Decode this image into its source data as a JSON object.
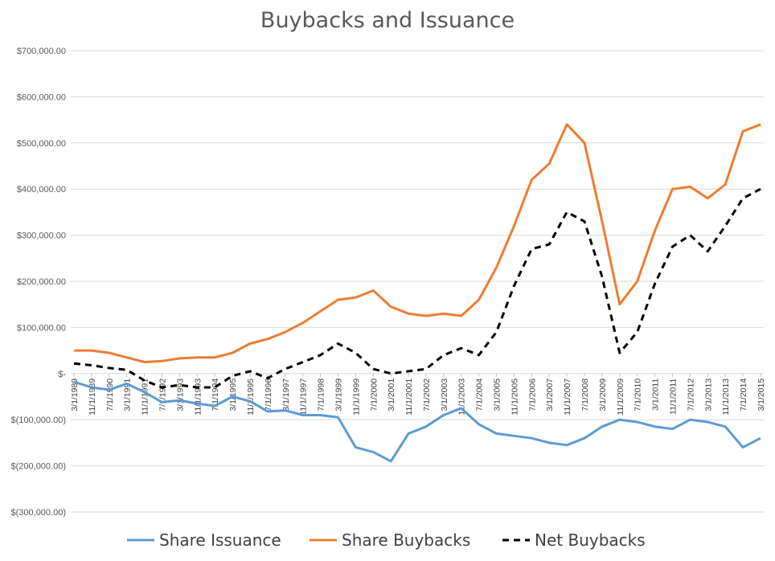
{
  "chart_data": {
    "type": "line",
    "title": "Buybacks and Issuance",
    "xlabel": "",
    "ylabel": "",
    "ylim": [
      -300000,
      700000
    ],
    "grid": true,
    "legend_position": "bottom",
    "y_tick_labels": [
      "$700,000.00",
      "$600,000.00",
      "$500,000.00",
      "$400,000.00",
      "$300,000.00",
      "$200,000.00",
      "$100,000.00",
      "$-",
      "$(100,000.00)",
      "$(200,000.00)",
      "$(300,000.00)"
    ],
    "y_tick_values": [
      700000,
      600000,
      500000,
      400000,
      300000,
      200000,
      100000,
      0,
      -100000,
      -200000,
      -300000
    ],
    "x_tick_labels": [
      "3/1/1989",
      "11/1/1989",
      "7/1/1990",
      "3/1/1991",
      "11/1/1991",
      "7/1/1992",
      "3/1/1993",
      "11/1/1993",
      "7/1/1994",
      "3/1/1995",
      "11/1/1995",
      "7/1/1996",
      "3/1/1997",
      "11/1/1997",
      "7/1/1998",
      "3/1/1999",
      "11/1/1999",
      "7/1/2000",
      "3/1/2001",
      "11/1/2001",
      "7/1/2002",
      "3/1/2003",
      "11/1/2003",
      "7/1/2004",
      "3/1/2005",
      "11/1/2005",
      "7/1/2006",
      "3/1/2007",
      "11/1/2007",
      "7/1/2008",
      "3/1/2009",
      "11/1/2009",
      "7/1/2010",
      "3/1/2011",
      "11/1/2011",
      "7/1/2012",
      "3/1/2013",
      "11/1/2013",
      "7/1/2014",
      "3/1/2015"
    ],
    "x": [
      "3/1/1989",
      "11/1/1989",
      "7/1/1990",
      "3/1/1991",
      "11/1/1991",
      "7/1/1992",
      "3/1/1993",
      "11/1/1993",
      "7/1/1994",
      "3/1/1995",
      "11/1/1995",
      "7/1/1996",
      "3/1/1997",
      "11/1/1997",
      "7/1/1998",
      "3/1/1999",
      "11/1/1999",
      "7/1/2000",
      "3/1/2001",
      "11/1/2001",
      "7/1/2002",
      "3/1/2003",
      "11/1/2003",
      "7/1/2004",
      "3/1/2005",
      "11/1/2005",
      "7/1/2006",
      "3/1/2007",
      "11/1/2007",
      "7/1/2008",
      "3/1/2009",
      "11/1/2009",
      "7/1/2010",
      "3/1/2011",
      "11/1/2011",
      "7/1/2012",
      "3/1/2013",
      "11/1/2013",
      "7/1/2014",
      "3/1/2015"
    ],
    "series": [
      {
        "name": "Share Issuance",
        "color": "#5B9BD5",
        "dash": "solid",
        "values": [
          -18000,
          -30000,
          -35000,
          -22000,
          -40000,
          -62000,
          -58000,
          -65000,
          -70000,
          -50000,
          -60000,
          -82000,
          -80000,
          -90000,
          -90000,
          -95000,
          -160000,
          -170000,
          -190000,
          -130000,
          -115000,
          -90000,
          -75000,
          -110000,
          -130000,
          -135000,
          -140000,
          -150000,
          -155000,
          -140000,
          -115000,
          -100000,
          -105000,
          -115000,
          -120000,
          -100000,
          -105000,
          -115000,
          -160000,
          -140000
        ]
      },
      {
        "name": "Share Buybacks",
        "color": "#ED7D31",
        "dash": "solid",
        "values": [
          50000,
          50000,
          45000,
          35000,
          25000,
          27000,
          33000,
          35000,
          35000,
          45000,
          65000,
          75000,
          90000,
          110000,
          135000,
          160000,
          165000,
          180000,
          145000,
          130000,
          125000,
          130000,
          125000,
          160000,
          230000,
          320000,
          420000,
          455000,
          540000,
          500000,
          330000,
          150000,
          200000,
          310000,
          400000,
          405000,
          380000,
          410000,
          525000,
          540000
        ]
      },
      {
        "name": "Net Buybacks",
        "color": "#000000",
        "dash": "dashed",
        "values": [
          22000,
          18000,
          12000,
          8000,
          -15000,
          -30000,
          -25000,
          -30000,
          -30000,
          -5000,
          5000,
          -10000,
          10000,
          25000,
          40000,
          65000,
          45000,
          10000,
          0,
          5000,
          10000,
          40000,
          55000,
          40000,
          90000,
          190000,
          270000,
          280000,
          350000,
          330000,
          210000,
          45000,
          90000,
          195000,
          275000,
          300000,
          265000,
          320000,
          380000,
          400000
        ]
      }
    ]
  }
}
